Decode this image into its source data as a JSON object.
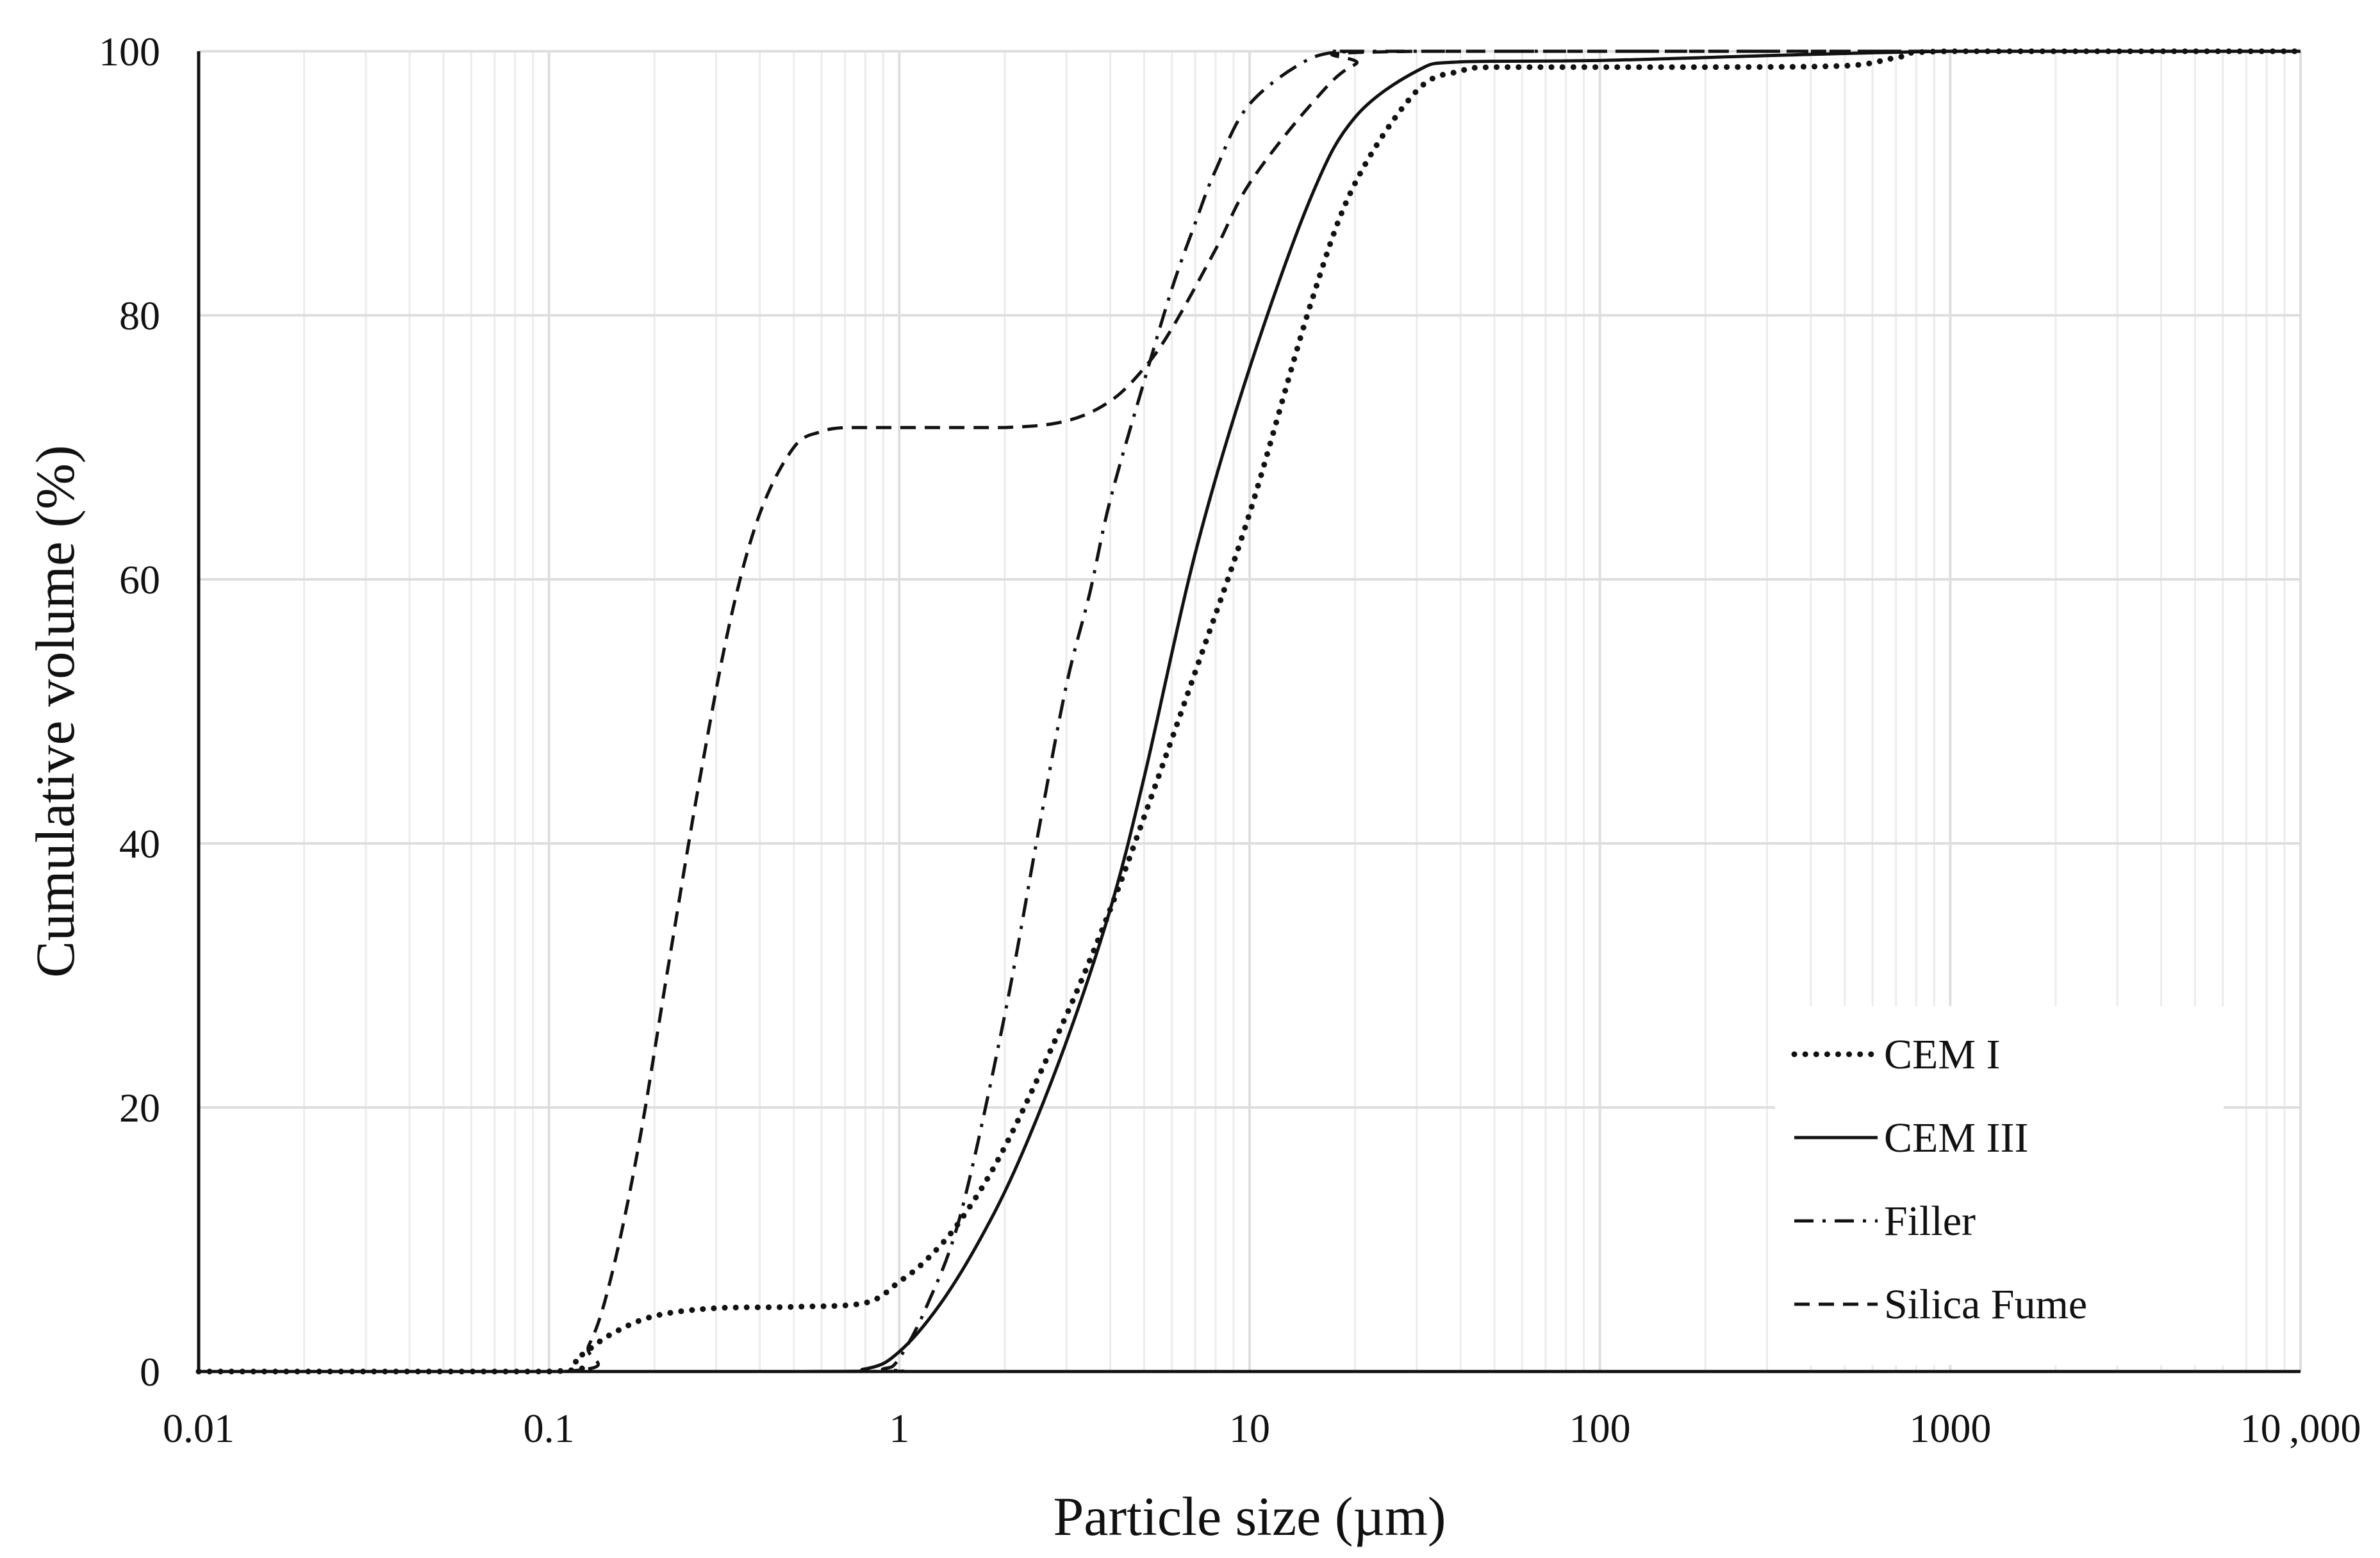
{
  "chart_data": {
    "type": "line",
    "title": "",
    "xlabel": "Particle size (µm)",
    "ylabel": "Cumulative volume (%)",
    "x_scale": "log",
    "xlim": [
      0.01,
      10000
    ],
    "ylim": [
      0,
      100
    ],
    "grid": true,
    "legend_position": "bottom-right",
    "x_ticks": [
      {
        "value": 0.01,
        "label": "0.01"
      },
      {
        "value": 0.1,
        "label": "0.1"
      },
      {
        "value": 1,
        "label": "1"
      },
      {
        "value": 10,
        "label": "10"
      },
      {
        "value": 100,
        "label": "100"
      },
      {
        "value": 1000,
        "label": "1000"
      },
      {
        "value": 10000,
        "label": "10 ,000"
      }
    ],
    "y_ticks": [
      {
        "value": 0,
        "label": "0"
      },
      {
        "value": 20,
        "label": "20"
      },
      {
        "value": 40,
        "label": "40"
      },
      {
        "value": 60,
        "label": "60"
      },
      {
        "value": 80,
        "label": "80"
      },
      {
        "value": 100,
        "label": "100"
      }
    ],
    "series": [
      {
        "name": "CEM I",
        "style": "dotted",
        "color": "#111111",
        "x": [
          0.01,
          0.1,
          0.12,
          0.15,
          0.2,
          0.3,
          0.5,
          0.8,
          1.0,
          1.2,
          1.5,
          2,
          3,
          4,
          5,
          7,
          10,
          15,
          20,
          30,
          40,
          50,
          100,
          200,
          500,
          700,
          1000,
          10000
        ],
        "y": [
          0,
          0,
          1,
          2.8,
          4.2,
          4.8,
          4.9,
          5.2,
          6.8,
          8.5,
          11.5,
          17,
          27,
          35,
          42,
          53,
          65,
          81,
          90,
          97,
          98.5,
          98.8,
          98.8,
          98.8,
          98.9,
          99.5,
          100,
          100
        ]
      },
      {
        "name": "CEM III",
        "style": "solid",
        "color": "#111111",
        "x": [
          0.01,
          0.5,
          0.8,
          1.0,
          1.3,
          1.7,
          2.2,
          3,
          4,
          5,
          7,
          10,
          15,
          20,
          30,
          40,
          100,
          1000,
          10000
        ],
        "y": [
          0,
          0,
          0.2,
          1.5,
          5,
          10,
          16,
          25,
          35,
          45,
          62,
          76,
          89,
          95,
          98.5,
          99.2,
          99.3,
          100,
          100
        ]
      },
      {
        "name": "Filler",
        "style": "dashdot",
        "color": "#111111",
        "x": [
          0.01,
          0.7,
          0.9,
          1.0,
          1.2,
          1.5,
          2,
          2.5,
          3,
          3.5,
          4,
          5,
          6,
          7,
          8,
          10,
          15,
          20,
          30,
          10000
        ],
        "y": [
          0,
          0,
          0.2,
          1,
          5,
          12,
          27,
          41,
          52,
          59,
          66,
          75,
          82,
          87,
          91,
          96,
          99.5,
          100,
          100,
          100
        ]
      },
      {
        "name": "Silica Fume",
        "style": "dashed",
        "color": "#111111",
        "x": [
          0.01,
          0.11,
          0.13,
          0.15,
          0.18,
          0.22,
          0.27,
          0.33,
          0.4,
          0.5,
          0.6,
          0.7,
          0.8,
          1.0,
          2,
          3,
          4,
          5,
          6,
          8,
          10,
          15,
          20,
          30,
          10000
        ],
        "y": [
          0,
          0,
          2,
          7,
          17,
          31,
          45,
          57,
          65,
          70,
          71.2,
          71.5,
          71.5,
          71.5,
          71.5,
          72,
          73.5,
          76,
          79,
          85,
          90,
          96,
          99,
          100,
          100
        ]
      }
    ]
  }
}
